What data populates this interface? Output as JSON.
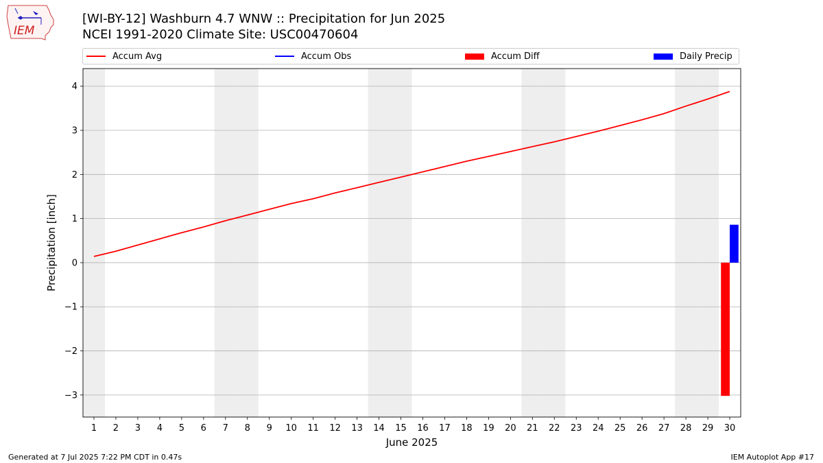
{
  "title_line1": "[WI-BY-12] Washburn 4.7 WNW :: Precipitation for Jun 2025",
  "title_line2": "NCEI 1991-2020 Climate Site: USC00470604",
  "logo_text": "IEM",
  "footer": {
    "left": "Generated at 7 Jul 2025 7:22 PM CDT in 0.47s",
    "right": "IEM Autoplot App #17"
  },
  "colors": {
    "accum_avg": "#ff0000",
    "accum_obs": "#0000ff",
    "accum_diff": "#ff0000",
    "daily_precip": "#0000ff",
    "weekend_shade": "#eeeeee",
    "grid": "#b0b0b0"
  },
  "chart_data": {
    "type": "bar",
    "xlabel": "June 2025",
    "ylabel": "Precipitation [inch]",
    "xlim": [
      0.5,
      30.5
    ],
    "ylim": [
      -3.5,
      4.4
    ],
    "yticks": [
      -3,
      -2,
      -1,
      0,
      1,
      2,
      3,
      4
    ],
    "ytick_labels": [
      "−3",
      "−2",
      "−1",
      "0",
      "1",
      "2",
      "3",
      "4"
    ],
    "x": [
      1,
      2,
      3,
      4,
      5,
      6,
      7,
      8,
      9,
      10,
      11,
      12,
      13,
      14,
      15,
      16,
      17,
      18,
      19,
      20,
      21,
      22,
      23,
      24,
      25,
      26,
      27,
      28,
      29,
      30
    ],
    "xtick_labels": [
      "1",
      "2",
      "3",
      "4",
      "5",
      "6",
      "7",
      "8",
      "9",
      "10",
      "11",
      "12",
      "13",
      "14",
      "15",
      "16",
      "17",
      "18",
      "19",
      "20",
      "21",
      "22",
      "23",
      "24",
      "25",
      "26",
      "27",
      "28",
      "29",
      "30"
    ],
    "weekend_days": [
      1,
      7,
      8,
      14,
      15,
      21,
      22,
      28,
      29
    ],
    "grid": "horizontal",
    "legend_placement": "top",
    "legend": [
      "Accum Avg",
      "Accum Obs",
      "Accum Diff",
      "Daily Precip"
    ],
    "accum_avg": [
      0.14,
      0.26,
      0.4,
      0.54,
      0.68,
      0.81,
      0.95,
      1.08,
      1.21,
      1.34,
      1.45,
      1.58,
      1.7,
      1.82,
      1.94,
      2.06,
      2.18,
      2.3,
      2.41,
      2.52,
      2.63,
      2.74,
      2.86,
      2.98,
      3.11,
      3.24,
      3.38,
      3.55,
      3.71,
      3.88
    ],
    "accum_obs": [],
    "accum_diff": {
      "day": 30,
      "value": -3.02
    },
    "daily_precip": {
      "day": 30,
      "value": 0.86
    }
  }
}
